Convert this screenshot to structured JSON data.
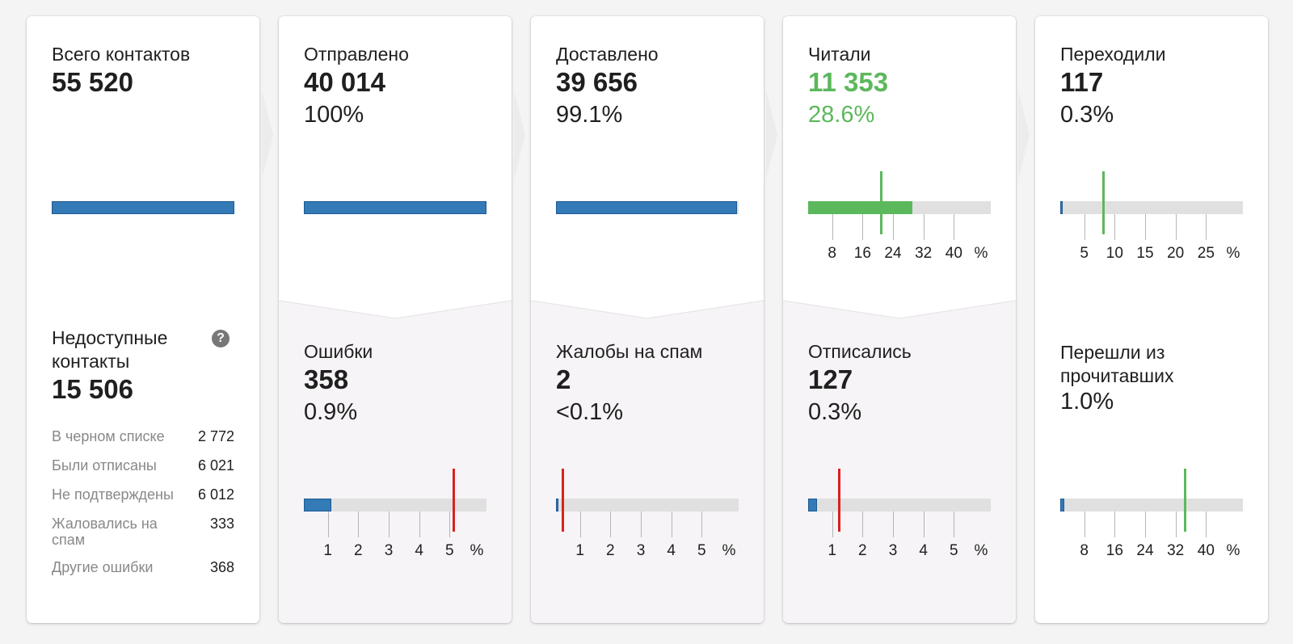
{
  "total": {
    "label": "Всего контактов",
    "value": "55 520"
  },
  "unavailable": {
    "label": "Недоступные контакты",
    "value": "15 506",
    "help_icon": "question-icon",
    "items": [
      {
        "label": "В черном списке",
        "value": "2 772"
      },
      {
        "label": "Были отписаны",
        "value": "6 021"
      },
      {
        "label": "Не подтверждены",
        "value": "6 012"
      },
      {
        "label": "Жаловались на спам",
        "value": "333"
      },
      {
        "label": "Другие ошибки",
        "value": "368"
      }
    ]
  },
  "sent": {
    "label": "Отправлено",
    "value": "40 014",
    "pct": "100%",
    "fill_fraction": 1.0
  },
  "delivered": {
    "label": "Доставлено",
    "value": "39 656",
    "pct": "99.1%",
    "fill_fraction": 0.991
  },
  "read": {
    "label": "Читали",
    "value": "11 353",
    "pct": "28.6%",
    "scale_max": 50,
    "fill_pct": 28.6,
    "benchmark_pct": 20,
    "ticks": [
      "8",
      "16",
      "24",
      "32",
      "40",
      "%"
    ]
  },
  "clicked": {
    "label": "Переходили",
    "value": "117",
    "pct": "0.3%",
    "scale_max": 30,
    "fill_pct": 0.3,
    "benchmark_pct": 7,
    "ticks": [
      "5",
      "10",
      "15",
      "20",
      "25",
      "%"
    ]
  },
  "errors": {
    "label": "Ошибки",
    "value": "358",
    "pct": "0.9%",
    "scale_max": 6,
    "fill_pct": 0.9,
    "benchmark_pct": 4.9,
    "ticks": [
      "1",
      "2",
      "3",
      "4",
      "5",
      "%"
    ]
  },
  "spam": {
    "label": "Жалобы на спам",
    "value": "2",
    "pct": "<0.1%",
    "scale_max": 6,
    "fill_pct": 0.05,
    "benchmark_pct": 0.2,
    "ticks": [
      "1",
      "2",
      "3",
      "4",
      "5",
      "%"
    ]
  },
  "unsubscribed": {
    "label": "Отписались",
    "value": "127",
    "pct": "0.3%",
    "scale_max": 6,
    "fill_pct": 0.3,
    "benchmark_pct": 1.0,
    "ticks": [
      "1",
      "2",
      "3",
      "4",
      "5",
      "%"
    ]
  },
  "click_from_read": {
    "label": "Перешли из прочитавших",
    "value": "",
    "pct": "1.0%",
    "scale_max": 50,
    "fill_pct": 1.0,
    "benchmark_pct": 34,
    "ticks": [
      "8",
      "16",
      "24",
      "32",
      "40",
      "%"
    ]
  },
  "colors": {
    "blue": "#337ab7",
    "green": "#5cb85c",
    "red": "#d9231d",
    "track": "#e0e0e0"
  }
}
